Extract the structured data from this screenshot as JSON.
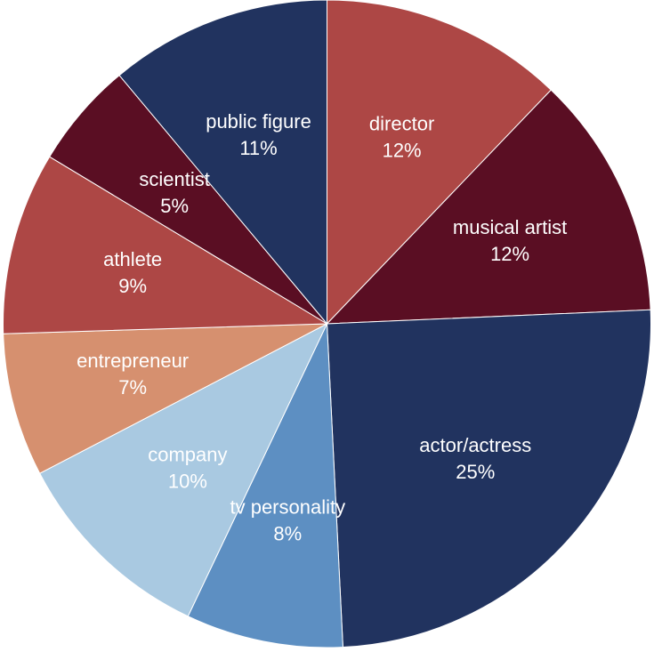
{
  "chart_data": {
    "type": "pie",
    "title": "",
    "start_angle_deg": 0,
    "direction": "clockwise",
    "slices": [
      {
        "label": "director",
        "percent_label": "12%",
        "value": 12.4,
        "color": "#ad4745"
      },
      {
        "label": "musical artist",
        "percent_label": "12%",
        "value": 12.4,
        "color": "#5a0e23"
      },
      {
        "label": "actor/actress",
        "percent_label": "25%",
        "value": 25.4,
        "color": "#21335f"
      },
      {
        "label": "tv personality",
        "percent_label": "8%",
        "value": 8.0,
        "color": "#5d8fc2"
      },
      {
        "label": "company",
        "percent_label": "10%",
        "value": 10.5,
        "color": "#a9c9e1"
      },
      {
        "label": "entrepreneur",
        "percent_label": "7%",
        "value": 7.3,
        "color": "#d6906f"
      },
      {
        "label": "athlete",
        "percent_label": "9%",
        "value": 9.3,
        "color": "#ad4745"
      },
      {
        "label": "scientist",
        "percent_label": "5%",
        "value": 5.4,
        "color": "#5a0e23"
      },
      {
        "label": "public figure",
        "percent_label": "11%",
        "value": 11.3,
        "color": "#21335f"
      }
    ]
  }
}
